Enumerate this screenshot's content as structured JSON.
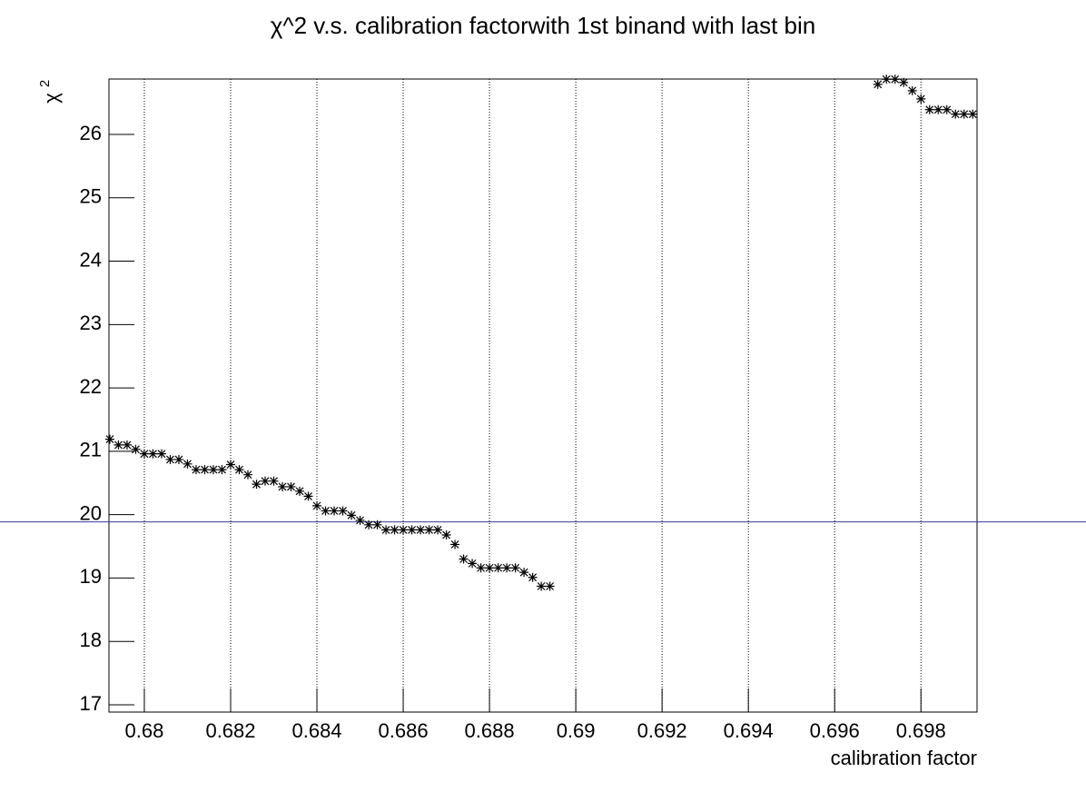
{
  "chart_data": {
    "type": "scatter",
    "title": "χ^2 v.s. calibration factorwith 1st binand with last bin",
    "xlabel": "calibration factor",
    "ylabel": "χ",
    "ylabel_sup": "2",
    "x": [
      0.6792,
      0.6794,
      0.6796,
      0.6798,
      0.68,
      0.6802,
      0.6804,
      0.6806,
      0.6808,
      0.681,
      0.6812,
      0.6814,
      0.6816,
      0.6818,
      0.682,
      0.6822,
      0.6824,
      0.6826,
      0.6828,
      0.683,
      0.6832,
      0.6834,
      0.6836,
      0.6838,
      0.684,
      0.6842,
      0.6844,
      0.6846,
      0.6848,
      0.685,
      0.6852,
      0.6854,
      0.6856,
      0.6858,
      0.686,
      0.6862,
      0.6864,
      0.6866,
      0.6868,
      0.687,
      0.6872,
      0.6874,
      0.6876,
      0.6878,
      0.688,
      0.6882,
      0.6884,
      0.6886,
      0.6888,
      0.689,
      0.6892,
      0.6894,
      0.697,
      0.6972,
      0.6974,
      0.6976,
      0.6978,
      0.698,
      0.6982,
      0.6984,
      0.6986,
      0.6988,
      0.699,
      0.6992
    ],
    "values": [
      21.19,
      21.1,
      21.1,
      21.03,
      20.96,
      20.96,
      20.96,
      20.87,
      20.87,
      20.8,
      20.71,
      20.71,
      20.71,
      20.71,
      20.79,
      20.71,
      20.63,
      20.48,
      20.53,
      20.53,
      20.44,
      20.44,
      20.37,
      20.29,
      20.14,
      20.06,
      20.06,
      20.06,
      19.99,
      19.91,
      19.84,
      19.84,
      19.76,
      19.76,
      19.76,
      19.76,
      19.76,
      19.76,
      19.76,
      19.68,
      19.53,
      19.3,
      19.23,
      19.16,
      19.16,
      19.16,
      19.16,
      19.16,
      19.09,
      19.01,
      18.87,
      18.87,
      26.79,
      26.87,
      26.87,
      26.82,
      26.69,
      26.56,
      26.39,
      26.39,
      26.39,
      26.32,
      26.32,
      26.32
    ],
    "color": "#000000",
    "xlim": [
      0.67918,
      0.6993
    ],
    "ylim": [
      16.885,
      26.874
    ],
    "xticks": [
      0.68,
      0.682,
      0.684,
      0.686,
      0.688,
      0.69,
      0.692,
      0.694,
      0.696,
      0.698
    ],
    "yticks": [
      17,
      18,
      19,
      20,
      21,
      22,
      23,
      24,
      25,
      26
    ],
    "xgrid": true,
    "hline": {
      "value": 19.885,
      "color": "#3a3a9a"
    }
  }
}
